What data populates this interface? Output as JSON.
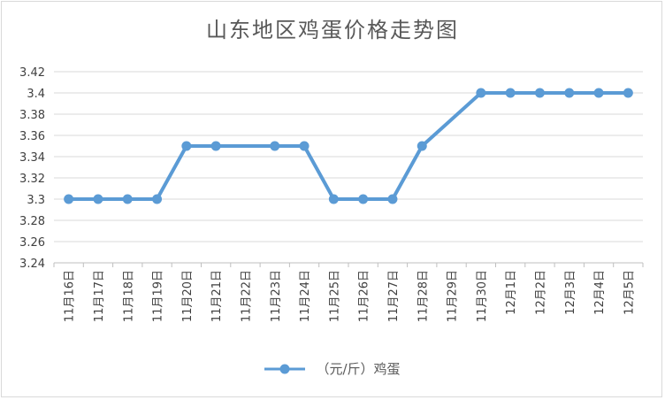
{
  "chart_data": {
    "type": "line",
    "title": "山东地区鸡蛋价格走势图",
    "categories": [
      "11月16日",
      "11月17日",
      "11月18日",
      "11月19日",
      "11月20日",
      "11月21日",
      "11月22日",
      "11月23日",
      "11月24日",
      "11月25日",
      "11月26日",
      "11月27日",
      "11月28日",
      "11月29日",
      "11月30日",
      "12月1日",
      "12月2日",
      "12月3日",
      "12月4日",
      "12月5日"
    ],
    "series": [
      {
        "name": "（元/斤）鸡蛋",
        "values": [
          3.3,
          3.3,
          3.3,
          3.3,
          3.35,
          3.35,
          null,
          3.35,
          3.35,
          3.3,
          3.3,
          3.3,
          3.35,
          null,
          3.4,
          3.4,
          3.4,
          3.4,
          3.4,
          3.4
        ],
        "color": "#5b9bd5"
      }
    ],
    "yticks": [
      "3.42",
      "3.4",
      "3.38",
      "3.36",
      "3.34",
      "3.32",
      "3.3",
      "3.28",
      "3.26",
      "3.24"
    ],
    "ylim": [
      3.24,
      3.42
    ],
    "grid": true,
    "legend": "bottom"
  }
}
